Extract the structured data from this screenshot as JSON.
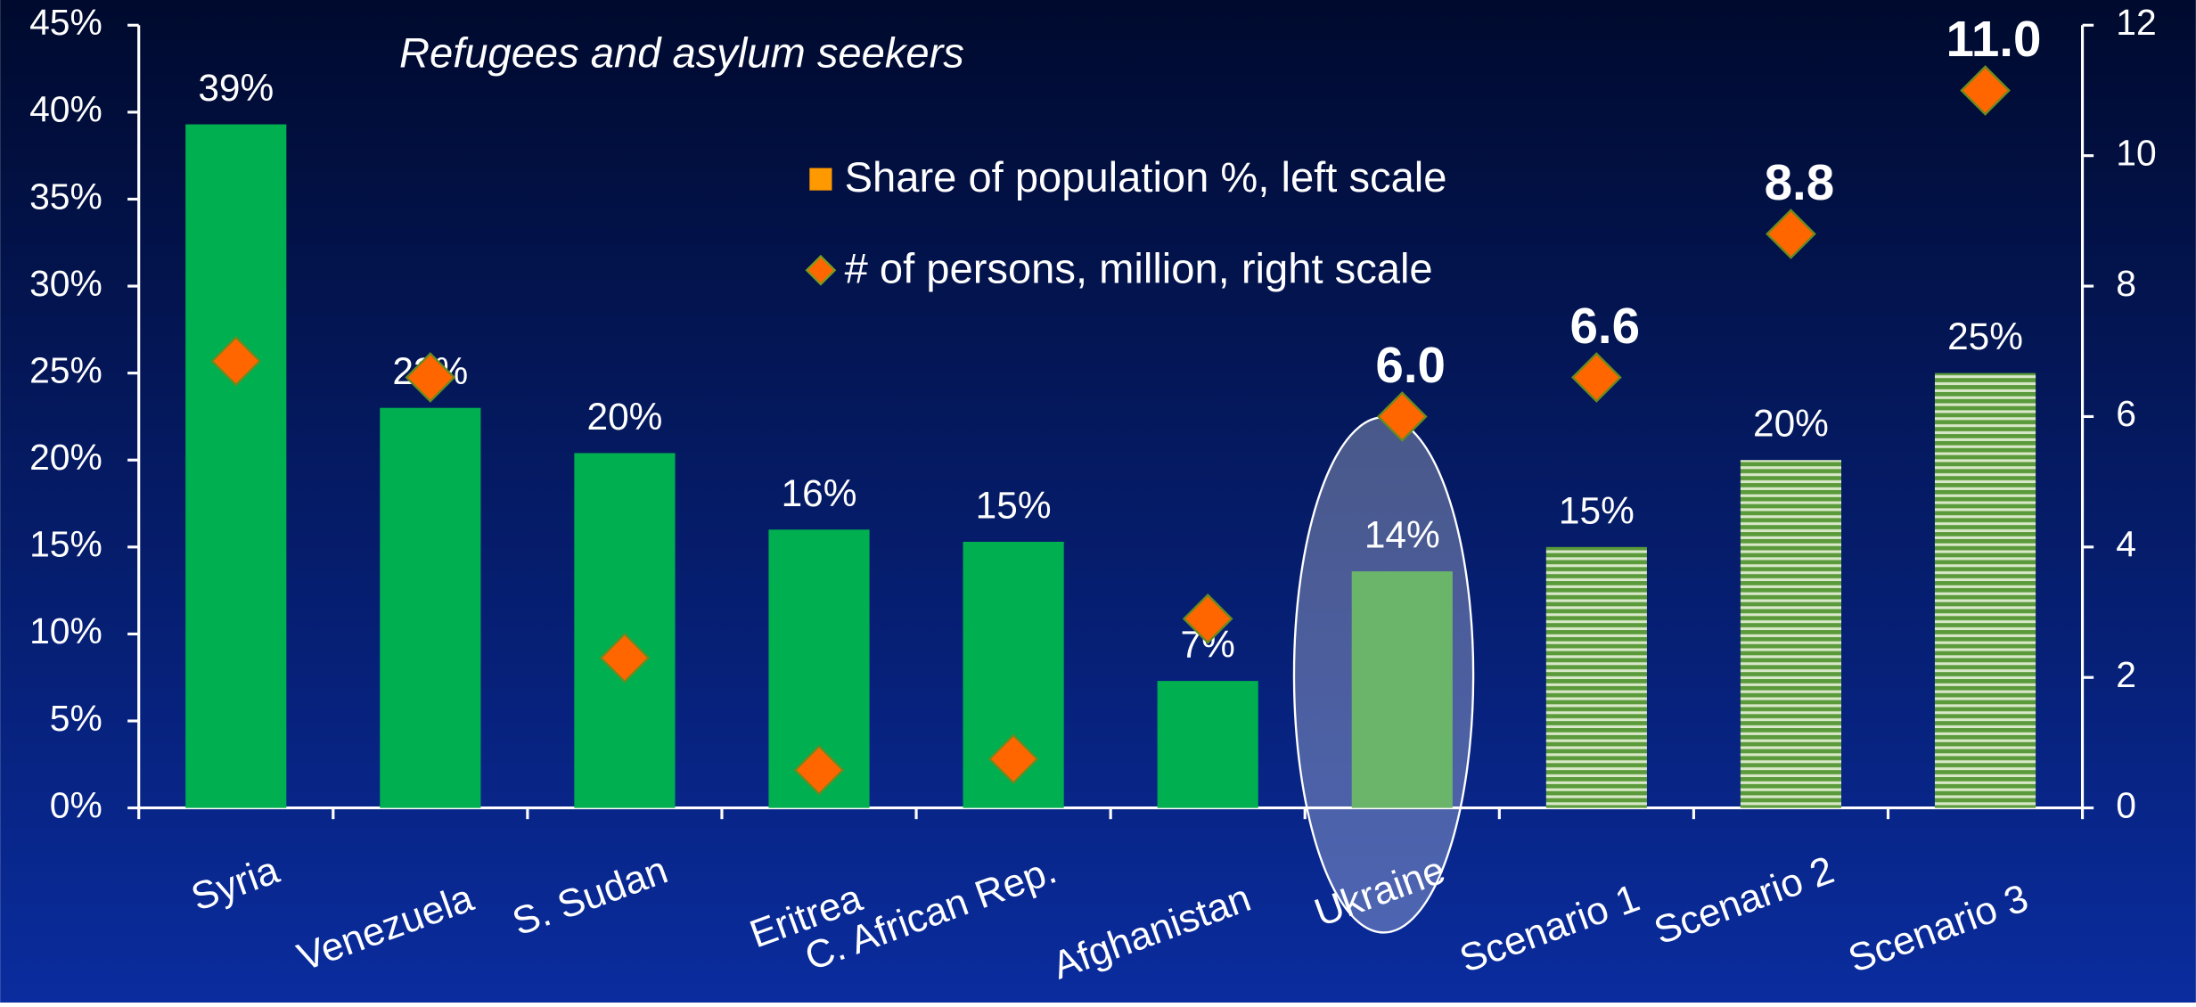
{
  "chart_data": {
    "type": "bar",
    "subtitle": "Refugees and asylum seekers",
    "categories": [
      "Syria",
      "Venezuela",
      "S. Sudan",
      "Eritrea",
      "C. African Rep.",
      "Afghanistan",
      "Ukraine",
      "Scenario 1",
      "Scenario 2",
      "Scenario 3"
    ],
    "series": [
      {
        "name": "Share of population %, left scale",
        "type": "bar",
        "color": "#00b050",
        "bar_colors": [
          "#00b050",
          "#00b050",
          "#00b050",
          "#00b050",
          "#00b050",
          "#00b050",
          "#339933",
          "#7fb04f",
          "#7fb04f",
          "#7fb04f"
        ],
        "bar_styles": [
          "solid",
          "solid",
          "solid",
          "solid",
          "solid",
          "solid",
          "solid",
          "striped",
          "striped",
          "striped"
        ],
        "values": [
          39.3,
          23,
          20.4,
          16,
          15.3,
          7.3,
          13.6,
          15,
          20,
          25
        ],
        "value_labels": [
          "39%",
          "23%",
          "20%",
          "16%",
          "15%",
          "7%",
          "14%",
          "15%",
          "20%",
          "25%"
        ]
      },
      {
        "name": "# of persons, million, right scale",
        "type": "scatter",
        "axis": "y2",
        "color": "#ff6600",
        "values": [
          6.85,
          6.6,
          2.3,
          0.58,
          0.75,
          2.9,
          6.0,
          6.6,
          8.8,
          11.0
        ],
        "value_labels": [
          null,
          null,
          null,
          null,
          null,
          null,
          "6.0",
          "6.6",
          "8.8",
          "11.0"
        ]
      }
    ],
    "ylim": [
      0,
      45
    ],
    "yticks": [
      {
        "value": 0,
        "label": "0%"
      },
      {
        "value": 5,
        "label": "5%"
      },
      {
        "value": 10,
        "label": "10%"
      },
      {
        "value": 15,
        "label": "15%"
      },
      {
        "value": 20,
        "label": "20%"
      },
      {
        "value": 25,
        "label": "25%"
      },
      {
        "value": 30,
        "label": "30%"
      },
      {
        "value": 35,
        "label": "35%"
      },
      {
        "value": 40,
        "label": "40%"
      },
      {
        "value": 45,
        "label": "45%"
      }
    ],
    "y2lim": [
      0,
      12
    ],
    "y2ticks": [
      0,
      2,
      4,
      6,
      8,
      10,
      12
    ]
  }
}
